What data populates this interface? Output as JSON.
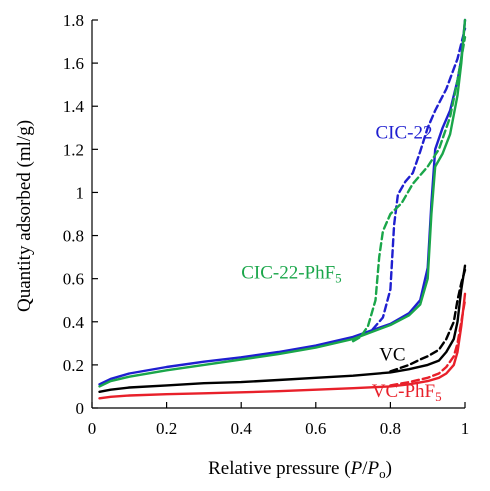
{
  "chart_data": {
    "type": "line",
    "xlabel": "Relative pressure",
    "xlabel_var": "P",
    "xlabel_sep": "/",
    "xlabel_var2": "P",
    "xlabel_sub": "o",
    "ylabel": "Quantity adsorbed (ml/g)",
    "xlim": [
      0,
      1
    ],
    "ylim": [
      0,
      1.8
    ],
    "x_ticks": [
      "0",
      "0.2",
      "0.4",
      "0.6",
      "0.8",
      "1"
    ],
    "y_ticks": [
      "0",
      "0.2",
      "0.4",
      "0.6",
      "0.8",
      "1",
      "1.2",
      "1.4",
      "1.6",
      "1.8"
    ],
    "grid": false,
    "series": [
      {
        "name": "CIC-22",
        "color": "#1f1fd0",
        "branch": "adsorption",
        "points": [
          [
            0.02,
            0.11
          ],
          [
            0.05,
            0.135
          ],
          [
            0.1,
            0.16
          ],
          [
            0.2,
            0.19
          ],
          [
            0.3,
            0.215
          ],
          [
            0.4,
            0.235
          ],
          [
            0.5,
            0.26
          ],
          [
            0.6,
            0.29
          ],
          [
            0.7,
            0.33
          ],
          [
            0.8,
            0.39
          ],
          [
            0.85,
            0.44
          ],
          [
            0.88,
            0.5
          ],
          [
            0.9,
            0.65
          ],
          [
            0.91,
            0.95
          ],
          [
            0.92,
            1.2
          ],
          [
            0.94,
            1.3
          ],
          [
            0.96,
            1.38
          ],
          [
            0.98,
            1.52
          ],
          [
            0.99,
            1.62
          ],
          [
            1.0,
            1.8
          ]
        ]
      },
      {
        "name": "CIC-22",
        "color": "#1f1fd0",
        "branch": "desorption",
        "points": [
          [
            0.7,
            0.32
          ],
          [
            0.75,
            0.36
          ],
          [
            0.78,
            0.42
          ],
          [
            0.8,
            0.55
          ],
          [
            0.81,
            0.85
          ],
          [
            0.82,
            0.99
          ],
          [
            0.84,
            1.05
          ],
          [
            0.86,
            1.09
          ],
          [
            0.88,
            1.19
          ],
          [
            0.9,
            1.3
          ],
          [
            0.92,
            1.38
          ],
          [
            0.95,
            1.48
          ],
          [
            0.98,
            1.62
          ],
          [
            1.0,
            1.76
          ]
        ]
      },
      {
        "name": "CIC-22-PhF",
        "sub": "5",
        "color": "#1aa64a",
        "branch": "adsorption",
        "points": [
          [
            0.02,
            0.1
          ],
          [
            0.05,
            0.125
          ],
          [
            0.1,
            0.145
          ],
          [
            0.2,
            0.175
          ],
          [
            0.3,
            0.2
          ],
          [
            0.4,
            0.225
          ],
          [
            0.5,
            0.25
          ],
          [
            0.6,
            0.28
          ],
          [
            0.7,
            0.32
          ],
          [
            0.8,
            0.385
          ],
          [
            0.85,
            0.43
          ],
          [
            0.88,
            0.48
          ],
          [
            0.9,
            0.6
          ],
          [
            0.91,
            0.9
          ],
          [
            0.92,
            1.12
          ],
          [
            0.94,
            1.18
          ],
          [
            0.96,
            1.27
          ],
          [
            0.98,
            1.45
          ],
          [
            0.99,
            1.6
          ],
          [
            1.0,
            1.8
          ]
        ]
      },
      {
        "name": "CIC-22-PhF",
        "sub": "5",
        "color": "#1aa64a",
        "branch": "desorption",
        "points": [
          [
            0.7,
            0.31
          ],
          [
            0.72,
            0.33
          ],
          [
            0.74,
            0.38
          ],
          [
            0.76,
            0.5
          ],
          [
            0.77,
            0.7
          ],
          [
            0.78,
            0.82
          ],
          [
            0.8,
            0.9
          ],
          [
            0.83,
            0.95
          ],
          [
            0.86,
            1.04
          ],
          [
            0.9,
            1.12
          ],
          [
            0.93,
            1.2
          ],
          [
            0.96,
            1.35
          ],
          [
            0.98,
            1.52
          ],
          [
            1.0,
            1.72
          ]
        ]
      },
      {
        "name": "VC",
        "color": "#000000",
        "branch": "adsorption",
        "points": [
          [
            0.02,
            0.075
          ],
          [
            0.05,
            0.085
          ],
          [
            0.1,
            0.095
          ],
          [
            0.2,
            0.105
          ],
          [
            0.3,
            0.115
          ],
          [
            0.4,
            0.12
          ],
          [
            0.5,
            0.13
          ],
          [
            0.6,
            0.14
          ],
          [
            0.7,
            0.15
          ],
          [
            0.8,
            0.165
          ],
          [
            0.85,
            0.18
          ],
          [
            0.9,
            0.2
          ],
          [
            0.93,
            0.22
          ],
          [
            0.95,
            0.26
          ],
          [
            0.97,
            0.32
          ],
          [
            0.98,
            0.4
          ],
          [
            0.99,
            0.55
          ],
          [
            1.0,
            0.66
          ]
        ]
      },
      {
        "name": "VC",
        "color": "#000000",
        "branch": "desorption",
        "points": [
          [
            0.8,
            0.17
          ],
          [
            0.85,
            0.2
          ],
          [
            0.88,
            0.225
          ],
          [
            0.9,
            0.24
          ],
          [
            0.93,
            0.27
          ],
          [
            0.95,
            0.32
          ],
          [
            0.97,
            0.4
          ],
          [
            0.98,
            0.5
          ],
          [
            0.99,
            0.58
          ],
          [
            1.0,
            0.64
          ]
        ]
      },
      {
        "name": "VC-PhF",
        "sub": "5",
        "color": "#e8202a",
        "branch": "adsorption",
        "points": [
          [
            0.02,
            0.045
          ],
          [
            0.05,
            0.052
          ],
          [
            0.1,
            0.058
          ],
          [
            0.2,
            0.064
          ],
          [
            0.3,
            0.068
          ],
          [
            0.4,
            0.073
          ],
          [
            0.5,
            0.078
          ],
          [
            0.6,
            0.085
          ],
          [
            0.7,
            0.092
          ],
          [
            0.8,
            0.1
          ],
          [
            0.85,
            0.11
          ],
          [
            0.9,
            0.125
          ],
          [
            0.93,
            0.14
          ],
          [
            0.95,
            0.16
          ],
          [
            0.97,
            0.2
          ],
          [
            0.98,
            0.26
          ],
          [
            0.99,
            0.38
          ],
          [
            1.0,
            0.53
          ]
        ]
      },
      {
        "name": "VC-PhF",
        "sub": "5",
        "color": "#e8202a",
        "branch": "desorption",
        "points": [
          [
            0.8,
            0.105
          ],
          [
            0.85,
            0.12
          ],
          [
            0.9,
            0.14
          ],
          [
            0.93,
            0.16
          ],
          [
            0.95,
            0.19
          ],
          [
            0.97,
            0.24
          ],
          [
            0.98,
            0.3
          ],
          [
            0.99,
            0.4
          ],
          [
            1.0,
            0.5
          ]
        ]
      }
    ],
    "annotations": [
      {
        "text": "CIC-22",
        "color": "#1f1fd0",
        "at": [
          0.76,
          1.25
        ]
      },
      {
        "text": "CIC-22-PhF",
        "sub": "5",
        "color": "#1aa64a",
        "at": [
          0.4,
          0.6
        ]
      },
      {
        "text": "VC",
        "color": "#000000",
        "at": [
          0.77,
          0.22
        ]
      },
      {
        "text": "VC-PhF",
        "sub": "5",
        "color": "#e8202a",
        "at": [
          0.75,
          0.05
        ]
      }
    ]
  }
}
